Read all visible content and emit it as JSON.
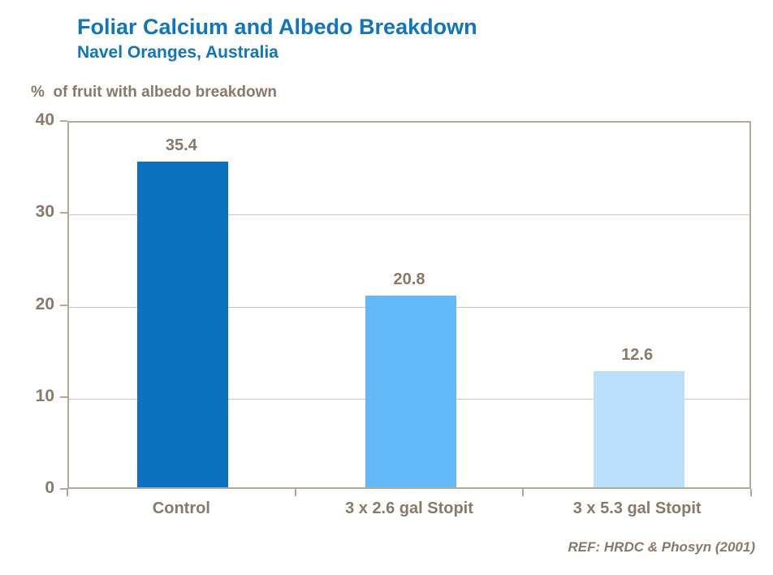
{
  "header": {
    "title": "Foliar Calcium and Albedo Breakdown",
    "subtitle": "Navel Oranges, Australia"
  },
  "chart_data": {
    "type": "bar",
    "title": "Foliar Calcium and Albedo Breakdown",
    "subtitle": "Navel Oranges, Australia",
    "xlabel": "",
    "ylabel": "%  of fruit with albedo breakdown",
    "categories": [
      "Control",
      "3 x 2.6 gal Stopit",
      "3 x 5.3 gal Stopit"
    ],
    "values": [
      35.4,
      20.8,
      12.6
    ],
    "data_labels": [
      "35.4",
      "20.8",
      "12.6"
    ],
    "bar_colors": [
      "#0B72C1",
      "#63B9F8",
      "#BCE0FB"
    ],
    "ylim": [
      0,
      40
    ],
    "yticks": [
      0,
      10,
      20,
      30,
      40
    ],
    "grid": "horizontal gridlines at 10, 20, 30; full tan plot border",
    "legend": "none"
  },
  "footer": {
    "reference": "REF: HRDC & Phosyn (2001)"
  },
  "colors": {
    "title_blue": "#0F75BD",
    "axis_line": "#B2A99C",
    "gridline": "#CCC4B8",
    "label_brown": "#8A7868",
    "background": "#FFFFFF"
  }
}
